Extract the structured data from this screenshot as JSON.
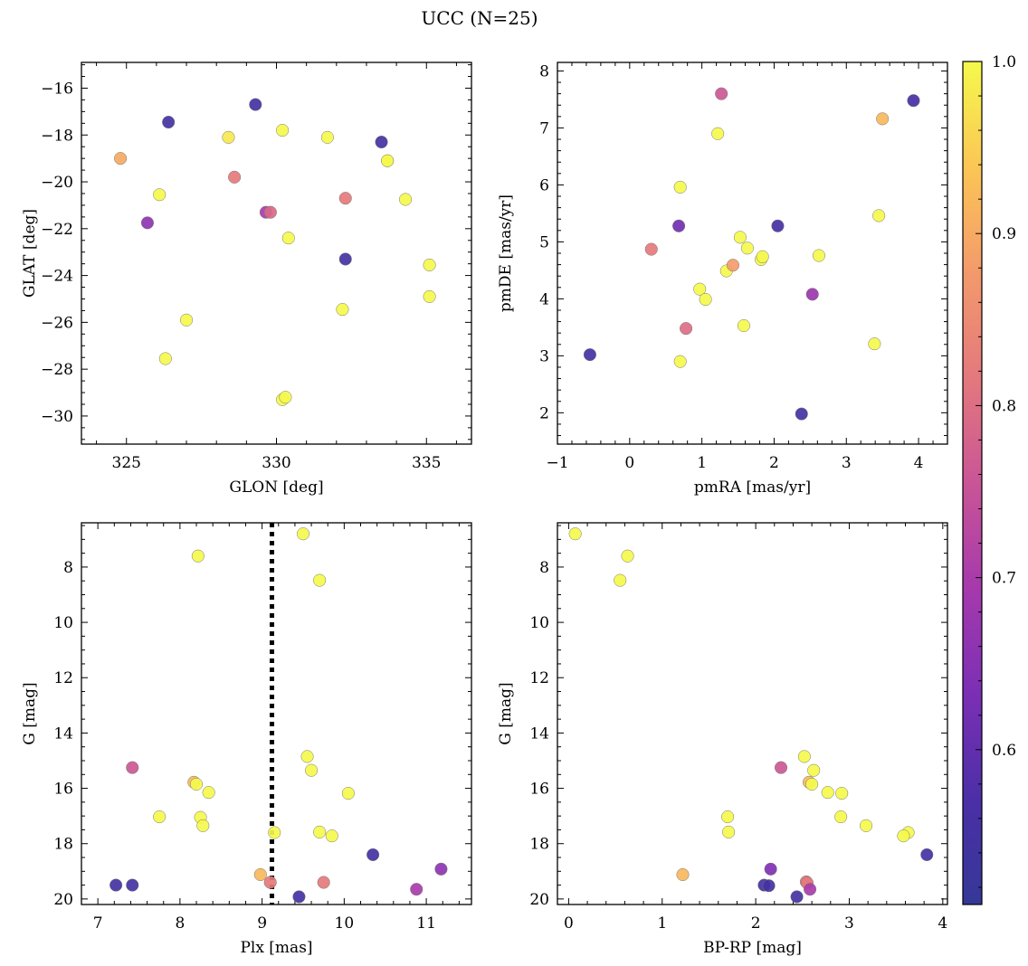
{
  "figure": {
    "title": "UCC (N=25)"
  },
  "colorbar": {
    "colormap": "plasma",
    "range": [
      0.51,
      1.0
    ],
    "tick_labels": [
      "0.6",
      "0.7",
      "0.8",
      "0.9",
      "1.0"
    ]
  },
  "chart_data": [
    {
      "type": "scatter",
      "xlabel": "GLON [deg]",
      "ylabel": "GLAT [deg]",
      "xlim": [
        323.5,
        336.5
      ],
      "ylim": [
        -31.2,
        -14.9
      ],
      "y_inverted": false,
      "xticks": [
        325,
        330,
        335
      ],
      "yticks": [
        -30,
        -28,
        -26,
        -24,
        -22,
        -20,
        -18,
        -16
      ],
      "points": [
        {
          "x": 324.8,
          "y": -19.0,
          "c": 0.9
        },
        {
          "x": 325.7,
          "y": -21.75,
          "c": 0.66
        },
        {
          "x": 326.1,
          "y": -20.55,
          "c": 1.0
        },
        {
          "x": 326.3,
          "y": -27.55,
          "c": 1.0
        },
        {
          "x": 326.4,
          "y": -17.45,
          "c": 0.55
        },
        {
          "x": 327.0,
          "y": -25.9,
          "c": 1.0
        },
        {
          "x": 328.4,
          "y": -18.1,
          "c": 0.98
        },
        {
          "x": 328.6,
          "y": -19.8,
          "c": 0.82
        },
        {
          "x": 329.3,
          "y": -16.7,
          "c": 0.55
        },
        {
          "x": 329.65,
          "y": -21.3,
          "c": 0.7
        },
        {
          "x": 329.8,
          "y": -21.3,
          "c": 0.79
        },
        {
          "x": 330.2,
          "y": -17.8,
          "c": 1.0
        },
        {
          "x": 330.2,
          "y": -29.3,
          "c": 1.0
        },
        {
          "x": 330.3,
          "y": -29.2,
          "c": 1.0
        },
        {
          "x": 330.4,
          "y": -22.4,
          "c": 1.0
        },
        {
          "x": 331.7,
          "y": -18.1,
          "c": 1.0
        },
        {
          "x": 332.2,
          "y": -25.45,
          "c": 1.0
        },
        {
          "x": 332.3,
          "y": -23.3,
          "c": 0.55
        },
        {
          "x": 332.3,
          "y": -20.7,
          "c": 0.82
        },
        {
          "x": 333.5,
          "y": -18.3,
          "c": 0.55
        },
        {
          "x": 333.7,
          "y": -19.1,
          "c": 1.0
        },
        {
          "x": 333.7,
          "y": -19.1,
          "c": 1.0
        },
        {
          "x": 334.3,
          "y": -20.75,
          "c": 1.0
        },
        {
          "x": 335.1,
          "y": -23.55,
          "c": 1.0
        },
        {
          "x": 335.1,
          "y": -24.9,
          "c": 1.0
        }
      ]
    },
    {
      "type": "scatter",
      "xlabel": "pmRA [mas/yr]",
      "ylabel": "pmDE [mas/yr]",
      "xlim": [
        -1.0,
        4.4
      ],
      "ylim": [
        1.45,
        8.15
      ],
      "y_inverted": false,
      "xticks": [
        -1,
        0,
        1,
        2,
        3,
        4
      ],
      "yticks": [
        2,
        3,
        4,
        5,
        6,
        7,
        8
      ],
      "points": [
        {
          "x": -0.55,
          "y": 3.02,
          "c": 0.55
        },
        {
          "x": 0.3,
          "y": 4.87,
          "c": 0.82
        },
        {
          "x": 0.68,
          "y": 5.28,
          "c": 0.62
        },
        {
          "x": 0.7,
          "y": 5.96,
          "c": 1.0
        },
        {
          "x": 0.7,
          "y": 2.9,
          "c": 1.0
        },
        {
          "x": 0.78,
          "y": 3.48,
          "c": 0.8
        },
        {
          "x": 0.97,
          "y": 4.17,
          "c": 1.0
        },
        {
          "x": 1.05,
          "y": 3.99,
          "c": 1.0
        },
        {
          "x": 1.22,
          "y": 6.9,
          "c": 1.0
        },
        {
          "x": 1.27,
          "y": 7.6,
          "c": 0.76
        },
        {
          "x": 1.34,
          "y": 4.49,
          "c": 1.0
        },
        {
          "x": 1.43,
          "y": 4.59,
          "c": 0.88
        },
        {
          "x": 1.53,
          "y": 5.08,
          "c": 1.0
        },
        {
          "x": 1.58,
          "y": 3.53,
          "c": 1.0
        },
        {
          "x": 1.63,
          "y": 4.89,
          "c": 1.0
        },
        {
          "x": 1.82,
          "y": 4.69,
          "c": 1.0
        },
        {
          "x": 1.84,
          "y": 4.74,
          "c": 1.0
        },
        {
          "x": 2.05,
          "y": 5.28,
          "c": 0.56
        },
        {
          "x": 2.38,
          "y": 1.98,
          "c": 0.55
        },
        {
          "x": 2.53,
          "y": 4.08,
          "c": 0.68
        },
        {
          "x": 2.62,
          "y": 4.76,
          "c": 1.0
        },
        {
          "x": 3.39,
          "y": 3.21,
          "c": 1.0
        },
        {
          "x": 3.45,
          "y": 5.46,
          "c": 1.0
        },
        {
          "x": 3.5,
          "y": 7.16,
          "c": 0.92
        },
        {
          "x": 3.93,
          "y": 7.48,
          "c": 0.56
        }
      ]
    },
    {
      "type": "scatter",
      "xlabel": "Plx [mas]",
      "ylabel": "G [mag]",
      "xlim": [
        6.8,
        11.55
      ],
      "ylim": [
        20.2,
        6.4
      ],
      "y_inverted": true,
      "xticks": [
        7,
        8,
        9,
        10,
        11
      ],
      "yticks": [
        8,
        10,
        12,
        14,
        16,
        18,
        20
      ],
      "vline": {
        "x": 9.12,
        "style": "dotted"
      },
      "points": [
        {
          "x": 9.5,
          "y": 6.8,
          "c": 1.0
        },
        {
          "x": 8.22,
          "y": 7.6,
          "c": 1.0
        },
        {
          "x": 9.7,
          "y": 8.48,
          "c": 1.0
        },
        {
          "x": 9.55,
          "y": 14.85,
          "c": 1.0
        },
        {
          "x": 7.42,
          "y": 15.25,
          "c": 0.76
        },
        {
          "x": 9.6,
          "y": 15.35,
          "c": 1.0
        },
        {
          "x": 8.17,
          "y": 15.78,
          "c": 0.92
        },
        {
          "x": 8.2,
          "y": 15.85,
          "c": 1.0
        },
        {
          "x": 8.35,
          "y": 16.15,
          "c": 1.0
        },
        {
          "x": 10.05,
          "y": 16.18,
          "c": 1.0
        },
        {
          "x": 7.75,
          "y": 17.03,
          "c": 1.0
        },
        {
          "x": 8.25,
          "y": 17.05,
          "c": 1.0
        },
        {
          "x": 8.28,
          "y": 17.35,
          "c": 1.0
        },
        {
          "x": 9.15,
          "y": 17.6,
          "c": 1.0
        },
        {
          "x": 9.7,
          "y": 17.58,
          "c": 1.0
        },
        {
          "x": 9.85,
          "y": 17.72,
          "c": 1.0
        },
        {
          "x": 10.35,
          "y": 18.4,
          "c": 0.55
        },
        {
          "x": 11.18,
          "y": 18.92,
          "c": 0.66
        },
        {
          "x": 8.98,
          "y": 19.12,
          "c": 0.92
        },
        {
          "x": 9.1,
          "y": 19.4,
          "c": 0.82
        },
        {
          "x": 9.75,
          "y": 19.4,
          "c": 0.82
        },
        {
          "x": 7.22,
          "y": 19.5,
          "c": 0.55
        },
        {
          "x": 7.42,
          "y": 19.5,
          "c": 0.55
        },
        {
          "x": 10.88,
          "y": 19.65,
          "c": 0.7
        },
        {
          "x": 9.45,
          "y": 19.92,
          "c": 0.55
        }
      ]
    },
    {
      "type": "scatter",
      "xlabel": "BP-RP [mag]",
      "ylabel": "G [mag]",
      "xlim": [
        -0.12,
        4.05
      ],
      "ylim": [
        20.2,
        6.4
      ],
      "y_inverted": true,
      "xticks": [
        0,
        1,
        2,
        3,
        4
      ],
      "yticks": [
        8,
        10,
        12,
        14,
        16,
        18,
        20
      ],
      "points": [
        {
          "x": 0.07,
          "y": 6.8,
          "c": 1.0
        },
        {
          "x": 0.63,
          "y": 7.6,
          "c": 1.0
        },
        {
          "x": 0.55,
          "y": 8.48,
          "c": 1.0
        },
        {
          "x": 2.52,
          "y": 14.85,
          "c": 1.0
        },
        {
          "x": 2.27,
          "y": 15.25,
          "c": 0.76
        },
        {
          "x": 2.62,
          "y": 15.35,
          "c": 1.0
        },
        {
          "x": 2.57,
          "y": 15.78,
          "c": 0.92
        },
        {
          "x": 2.6,
          "y": 15.85,
          "c": 1.0
        },
        {
          "x": 2.77,
          "y": 16.15,
          "c": 1.0
        },
        {
          "x": 2.92,
          "y": 16.18,
          "c": 1.0
        },
        {
          "x": 1.7,
          "y": 17.03,
          "c": 1.0
        },
        {
          "x": 2.91,
          "y": 17.03,
          "c": 1.0
        },
        {
          "x": 3.18,
          "y": 17.35,
          "c": 1.0
        },
        {
          "x": 1.71,
          "y": 17.58,
          "c": 1.0
        },
        {
          "x": 3.63,
          "y": 17.6,
          "c": 1.0
        },
        {
          "x": 3.58,
          "y": 17.72,
          "c": 1.0
        },
        {
          "x": 3.83,
          "y": 18.4,
          "c": 0.55
        },
        {
          "x": 2.16,
          "y": 18.92,
          "c": 0.64
        },
        {
          "x": 1.22,
          "y": 19.12,
          "c": 0.92
        },
        {
          "x": 2.54,
          "y": 19.38,
          "c": 0.82
        },
        {
          "x": 2.55,
          "y": 19.42,
          "c": 0.82
        },
        {
          "x": 2.09,
          "y": 19.5,
          "c": 0.55
        },
        {
          "x": 2.14,
          "y": 19.52,
          "c": 0.55
        },
        {
          "x": 2.58,
          "y": 19.65,
          "c": 0.7
        },
        {
          "x": 2.44,
          "y": 19.92,
          "c": 0.55
        }
      ]
    }
  ]
}
